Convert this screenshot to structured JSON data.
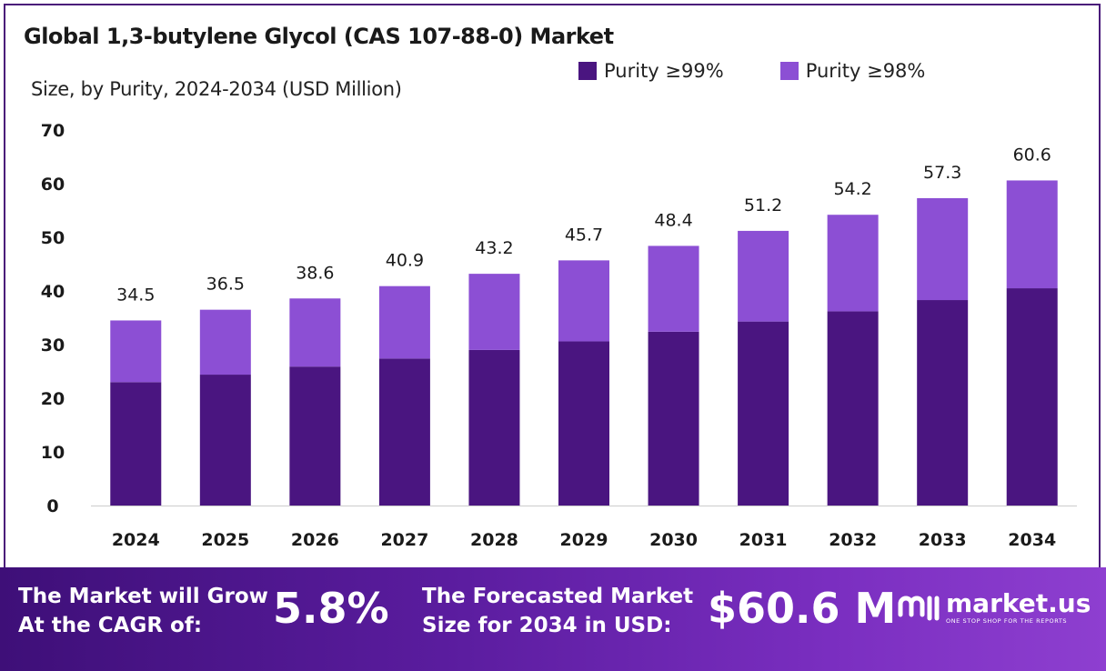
{
  "header": {
    "title": "Global 1,3-butylene Glycol (CAS 107-88-0) Market",
    "subtitle": "Size, by Purity, 2024-2034 (USD Million)"
  },
  "legend": [
    {
      "label": "Purity ≥99%",
      "color": "#4a1580"
    },
    {
      "label": "Purity ≥98%",
      "color": "#8c4fd4"
    }
  ],
  "chart_data": {
    "type": "bar",
    "stacked": true,
    "categories": [
      "2024",
      "2025",
      "2026",
      "2027",
      "2028",
      "2029",
      "2030",
      "2031",
      "2032",
      "2033",
      "2034"
    ],
    "series": [
      {
        "name": "Purity ≥99%",
        "color": "#4a1580",
        "values": [
          23.0,
          24.4,
          25.9,
          27.4,
          29.0,
          30.6,
          32.4,
          34.3,
          36.2,
          38.3,
          40.5
        ]
      },
      {
        "name": "Purity ≥98%",
        "color": "#8c4fd4",
        "values": [
          11.5,
          12.1,
          12.7,
          13.5,
          14.2,
          15.1,
          16.0,
          16.9,
          18.0,
          19.0,
          20.1
        ]
      }
    ],
    "totals": [
      "34.5",
      "36.5",
      "38.6",
      "40.9",
      "43.2",
      "45.7",
      "48.4",
      "51.2",
      "54.2",
      "57.3",
      "60.6"
    ],
    "yticks": [
      "0",
      "10",
      "20",
      "30",
      "40",
      "50",
      "60",
      "70"
    ],
    "ylim": [
      0,
      70
    ],
    "grid": false
  },
  "banner": {
    "cagr_label_line1": "The Market will Grow",
    "cagr_label_line2": "At the CAGR of:",
    "cagr_value": "5.8%",
    "forecast_label_line1": "The Forecasted Market",
    "forecast_label_line2": "Size for 2034 in USD:",
    "forecast_value": "$60.6 M",
    "logo_name": "market.us",
    "logo_tagline": "ONE STOP SHOP FOR THE REPORTS"
  }
}
